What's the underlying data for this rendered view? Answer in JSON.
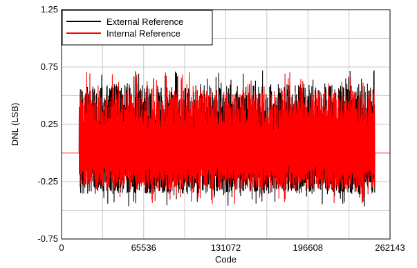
{
  "chart_data": {
    "type": "line",
    "xlabel": "Code",
    "ylabel": "DNL (LSB)",
    "xlim": [
      0,
      262143
    ],
    "ylim": [
      -0.75,
      1.25
    ],
    "x_ticks": [
      0,
      65536,
      131072,
      196608,
      262143
    ],
    "x_tick_labels": [
      "0",
      "65536",
      "131072",
      "196608",
      "262143"
    ],
    "y_ticks": [
      -0.75,
      -0.25,
      0.25,
      0.75,
      1.25
    ],
    "y_tick_labels": [
      "-0.75",
      "-0.25",
      "0.25",
      "0.75",
      "1.25"
    ],
    "grid": true,
    "legend_position": "top-left",
    "flat_level": 0,
    "active_range": [
      14000,
      250000
    ],
    "series": [
      {
        "name": "External Reference",
        "color": "#000000",
        "band_upper": 0.6,
        "band_lower": -0.36,
        "peak_max": 0.72,
        "peak_min": -0.47
      },
      {
        "name": "Internal Reference",
        "color": "#ff0000",
        "band_upper": 0.55,
        "band_lower": -0.32,
        "peak_max": 0.71,
        "peak_min": -0.45
      }
    ]
  }
}
